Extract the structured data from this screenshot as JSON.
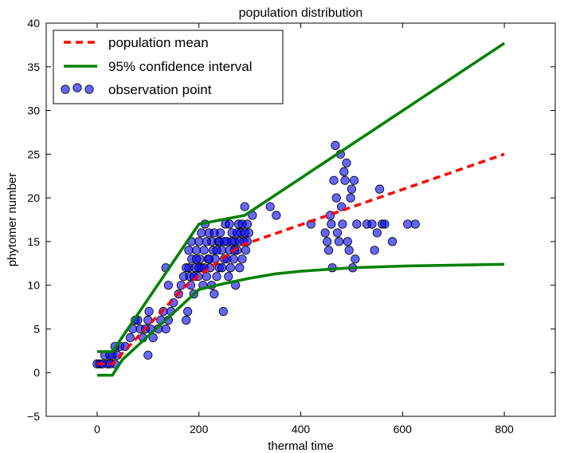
{
  "chart_data": {
    "type": "scatter",
    "title": "population distribution",
    "xlabel": "thermal time",
    "ylabel": "phytomer number",
    "xlim": [
      -100,
      900
    ],
    "ylim": [
      -5,
      40
    ],
    "xticks": [
      0,
      200,
      400,
      600,
      800
    ],
    "yticks": [
      -5,
      0,
      5,
      10,
      15,
      20,
      25,
      30,
      35,
      40
    ],
    "grid": false,
    "legend_position": "top-left",
    "colors": {
      "mean": "#ff0000",
      "ci": "#008000",
      "points_fill": "#0000ff",
      "points_edge": "#000000"
    },
    "legend": [
      {
        "label": "population mean",
        "style": "dashed-line",
        "color": "#ff0000"
      },
      {
        "label": "95% confidence interval",
        "style": "solid-line",
        "color": "#008000"
      },
      {
        "label": "observation point",
        "style": "marker",
        "color": "#0000ff"
      }
    ],
    "series": [
      {
        "name": "population mean",
        "kind": "line",
        "x": [
          0,
          30,
          175,
          280,
          800
        ],
        "y": [
          1,
          1,
          10,
          14.5,
          25
        ]
      },
      {
        "name": "95% confidence interval",
        "kind": "line",
        "bound": "upper",
        "x": [
          0,
          30,
          200,
          290,
          800
        ],
        "y": [
          2.4,
          2.4,
          17,
          18,
          37.7
        ]
      },
      {
        "name": "95% confidence interval",
        "kind": "line",
        "bound": "lower",
        "x": [
          0,
          30,
          50,
          200,
          220,
          250,
          300,
          350,
          400,
          450,
          500,
          600,
          700,
          800
        ],
        "y": [
          -0.3,
          -0.3,
          1.5,
          9.5,
          9.8,
          10.2,
          10.8,
          11.3,
          11.6,
          11.8,
          12,
          12.2,
          12.3,
          12.4
        ]
      },
      {
        "name": "observation point",
        "kind": "scatter",
        "points": [
          [
            0,
            1
          ],
          [
            5,
            1
          ],
          [
            10,
            1
          ],
          [
            15,
            2
          ],
          [
            20,
            1
          ],
          [
            25,
            2
          ],
          [
            30,
            2
          ],
          [
            35,
            1
          ],
          [
            40,
            2
          ],
          [
            45,
            3
          ],
          [
            35,
            3
          ],
          [
            25,
            1
          ],
          [
            55,
            3
          ],
          [
            65,
            4
          ],
          [
            70,
            5
          ],
          [
            75,
            6
          ],
          [
            80,
            6
          ],
          [
            85,
            5
          ],
          [
            90,
            4
          ],
          [
            95,
            5
          ],
          [
            100,
            6
          ],
          [
            102,
            7
          ],
          [
            105,
            5
          ],
          [
            110,
            4
          ],
          [
            120,
            5
          ],
          [
            125,
            6
          ],
          [
            130,
            7
          ],
          [
            135,
            5
          ],
          [
            140,
            6
          ],
          [
            135,
            12
          ],
          [
            140,
            10
          ],
          [
            145,
            7
          ],
          [
            150,
            8
          ],
          [
            100,
            2
          ],
          [
            160,
            9
          ],
          [
            165,
            10
          ],
          [
            170,
            11
          ],
          [
            175,
            6
          ],
          [
            178,
            7
          ],
          [
            180,
            12
          ],
          [
            182,
            11
          ],
          [
            184,
            10
          ],
          [
            186,
            13
          ],
          [
            190,
            9
          ],
          [
            192,
            12
          ],
          [
            195,
            14
          ],
          [
            198,
            11
          ],
          [
            200,
            15
          ],
          [
            202,
            13
          ],
          [
            205,
            12
          ],
          [
            208,
            10
          ],
          [
            210,
            14
          ],
          [
            212,
            17
          ],
          [
            215,
            11
          ],
          [
            218,
            13
          ],
          [
            220,
            16
          ],
          [
            222,
            12
          ],
          [
            225,
            15
          ],
          [
            228,
            14
          ],
          [
            230,
            9
          ],
          [
            232,
            13
          ],
          [
            235,
            11
          ],
          [
            238,
            15
          ],
          [
            240,
            12
          ],
          [
            242,
            16
          ],
          [
            245,
            14
          ],
          [
            248,
            7
          ],
          [
            250,
            13
          ],
          [
            252,
            17
          ],
          [
            255,
            15
          ],
          [
            258,
            11
          ],
          [
            260,
            14
          ],
          [
            262,
            12
          ],
          [
            265,
            16
          ],
          [
            268,
            13
          ],
          [
            270,
            15
          ],
          [
            272,
            10
          ],
          [
            275,
            14
          ],
          [
            278,
            17
          ],
          [
            280,
            12
          ],
          [
            282,
            16
          ],
          [
            285,
            13
          ],
          [
            288,
            15
          ],
          [
            290,
            19
          ],
          [
            292,
            14
          ],
          [
            295,
            17
          ],
          [
            298,
            16
          ],
          [
            305,
            18
          ],
          [
            175,
            12
          ],
          [
            180,
            14
          ],
          [
            185,
            15
          ],
          [
            190,
            11
          ],
          [
            195,
            13
          ],
          [
            200,
            12
          ],
          [
            205,
            16
          ],
          [
            210,
            12
          ],
          [
            215,
            15
          ],
          [
            220,
            13
          ],
          [
            225,
            10
          ],
          [
            230,
            16
          ],
          [
            235,
            14
          ],
          [
            240,
            15
          ],
          [
            245,
            12
          ],
          [
            250,
            15
          ],
          [
            255,
            13
          ],
          [
            260,
            17
          ],
          [
            265,
            15
          ],
          [
            270,
            14
          ],
          [
            275,
            16
          ],
          [
            280,
            15
          ],
          [
            285,
            17
          ],
          [
            290,
            16
          ],
          [
            295,
            15
          ],
          [
            340,
            19
          ],
          [
            352,
            18
          ],
          [
            420,
            17
          ],
          [
            448,
            16
          ],
          [
            452,
            15
          ],
          [
            455,
            14
          ],
          [
            458,
            18
          ],
          [
            460,
            17
          ],
          [
            462,
            12
          ],
          [
            465,
            22
          ],
          [
            468,
            26
          ],
          [
            470,
            20
          ],
          [
            472,
            16
          ],
          [
            475,
            15
          ],
          [
            478,
            25
          ],
          [
            480,
            19
          ],
          [
            482,
            17
          ],
          [
            485,
            23
          ],
          [
            487,
            22
          ],
          [
            490,
            24
          ],
          [
            492,
            15
          ],
          [
            495,
            14
          ],
          [
            498,
            20
          ],
          [
            500,
            21
          ],
          [
            502,
            12
          ],
          [
            505,
            22
          ],
          [
            507,
            13
          ],
          [
            510,
            17
          ],
          [
            530,
            17
          ],
          [
            540,
            17
          ],
          [
            545,
            14
          ],
          [
            550,
            16
          ],
          [
            555,
            21
          ],
          [
            560,
            17
          ],
          [
            565,
            17
          ],
          [
            580,
            15
          ],
          [
            610,
            17
          ],
          [
            625,
            17
          ]
        ]
      }
    ]
  }
}
